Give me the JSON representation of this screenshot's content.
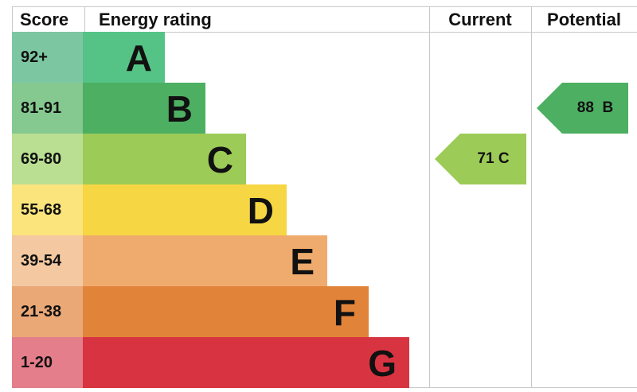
{
  "chart_data": {
    "type": "bar",
    "headers": {
      "score": "Score",
      "rating": "Energy rating",
      "current": "Current",
      "potential": "Potential"
    },
    "bands": [
      {
        "score": "92+",
        "letter": "A",
        "color": "#55c386",
        "score_color": "#7dc6a2"
      },
      {
        "score": "81-91",
        "letter": "B",
        "color": "#4daf62",
        "score_color": "#85c990"
      },
      {
        "score": "69-80",
        "letter": "C",
        "color": "#9ccb57",
        "score_color": "#badf92"
      },
      {
        "score": "55-68",
        "letter": "D",
        "color": "#f7d644",
        "score_color": "#fbe47c"
      },
      {
        "score": "39-54",
        "letter": "E",
        "color": "#efab6d",
        "score_color": "#f4c8a1"
      },
      {
        "score": "21-38",
        "letter": "F",
        "color": "#e2833a",
        "score_color": "#eaa877"
      },
      {
        "score": "1-20",
        "letter": "G",
        "color": "#d83340",
        "score_color": "#e47e8a"
      }
    ],
    "current": {
      "value": 71,
      "band": "C",
      "label": "71 C",
      "color": "#9ccb57"
    },
    "potential": {
      "value": 88,
      "band": "B",
      "label": "88  B",
      "color": "#4daf62"
    }
  }
}
